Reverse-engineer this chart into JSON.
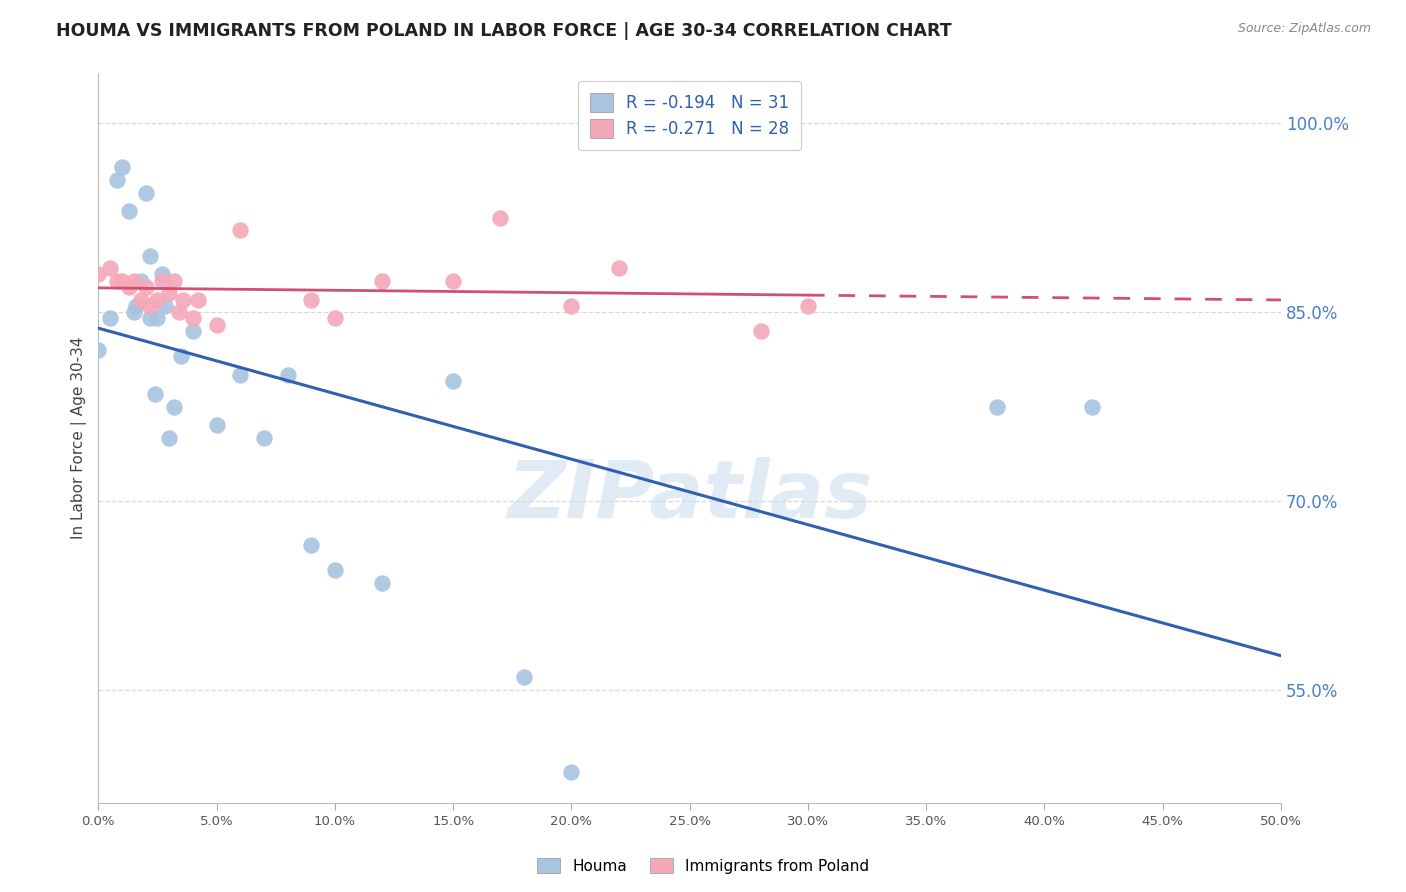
{
  "title": "HOUMA VS IMMIGRANTS FROM POLAND IN LABOR FORCE | AGE 30-34 CORRELATION CHART",
  "source": "Source: ZipAtlas.com",
  "ylabel": "In Labor Force | Age 30-34",
  "xlim": [
    0.0,
    0.5
  ],
  "ylim": [
    0.46,
    1.04
  ],
  "right_yticks": [
    0.55,
    0.7,
    0.85,
    1.0
  ],
  "xtick_labels": [
    "0.0%",
    "5.0%",
    "10.0%",
    "15.0%",
    "20.0%",
    "25.0%",
    "30.0%",
    "35.0%",
    "40.0%",
    "45.0%",
    "50.0%"
  ],
  "xtick_vals": [
    0.0,
    0.05,
    0.1,
    0.15,
    0.2,
    0.25,
    0.3,
    0.35,
    0.4,
    0.45,
    0.5
  ],
  "houma_x": [
    0.0,
    0.005,
    0.008,
    0.01,
    0.013,
    0.015,
    0.016,
    0.018,
    0.02,
    0.022,
    0.022,
    0.024,
    0.025,
    0.027,
    0.028,
    0.03,
    0.032,
    0.035,
    0.04,
    0.05,
    0.06,
    0.07,
    0.08,
    0.09,
    0.1,
    0.12,
    0.15,
    0.18,
    0.2,
    0.38,
    0.42
  ],
  "houma_y": [
    0.82,
    0.845,
    0.955,
    0.965,
    0.93,
    0.85,
    0.855,
    0.875,
    0.945,
    0.845,
    0.895,
    0.785,
    0.845,
    0.88,
    0.855,
    0.75,
    0.775,
    0.815,
    0.835,
    0.76,
    0.8,
    0.75,
    0.8,
    0.665,
    0.645,
    0.635,
    0.795,
    0.56,
    0.485,
    0.775,
    0.775
  ],
  "poland_x": [
    0.0,
    0.005,
    0.008,
    0.01,
    0.013,
    0.015,
    0.018,
    0.02,
    0.022,
    0.025,
    0.027,
    0.03,
    0.032,
    0.034,
    0.036,
    0.04,
    0.042,
    0.05,
    0.06,
    0.09,
    0.1,
    0.12,
    0.15,
    0.17,
    0.2,
    0.22,
    0.28,
    0.3
  ],
  "poland_y": [
    0.88,
    0.885,
    0.875,
    0.875,
    0.87,
    0.875,
    0.86,
    0.87,
    0.855,
    0.86,
    0.875,
    0.865,
    0.875,
    0.85,
    0.86,
    0.845,
    0.86,
    0.84,
    0.915,
    0.86,
    0.845,
    0.875,
    0.875,
    0.925,
    0.855,
    0.885,
    0.835,
    0.855
  ],
  "houma_color": "#a8c4e0",
  "poland_color": "#f4a8b8",
  "houma_line_color": "#3060b0",
  "poland_line_color": "#d05070",
  "houma_R": -0.194,
  "houma_N": 31,
  "poland_R": -0.271,
  "poland_N": 28,
  "legend_houma": "Houma",
  "legend_poland": "Immigrants from Poland",
  "watermark": "ZIPatlas",
  "background_color": "#ffffff",
  "grid_color": "#d8d8d8",
  "grid_dashes": [
    4,
    4
  ]
}
